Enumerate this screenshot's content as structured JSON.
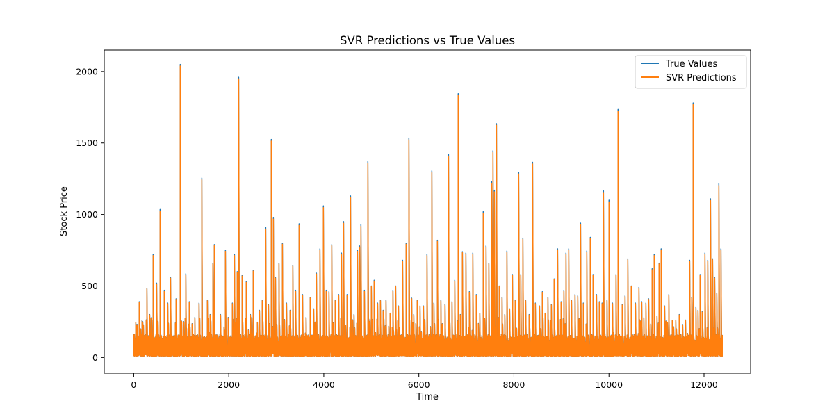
{
  "chart_data": {
    "type": "line",
    "title": "SVR Predictions vs True Values",
    "xlabel": "Time",
    "ylabel": "Stock Price",
    "xlim": [
      -620,
      12980
    ],
    "ylim": [
      -110,
      2150
    ],
    "xticks": [
      0,
      2000,
      4000,
      6000,
      8000,
      10000,
      12000
    ],
    "yticks": [
      0,
      500,
      1000,
      1500,
      2000
    ],
    "grid": false,
    "legend": "top-right",
    "n_points": 12400,
    "series": [
      {
        "name": "True Values",
        "color": "#1f77b4"
      },
      {
        "name": "SVR Predictions",
        "color": "#ff7f0e"
      }
    ],
    "spikes": [
      [
        60,
        230
      ],
      [
        130,
        390
      ],
      [
        200,
        250
      ],
      [
        280,
        485
      ],
      [
        340,
        300
      ],
      [
        420,
        720
      ],
      [
        490,
        520
      ],
      [
        560,
        1035
      ],
      [
        650,
        470
      ],
      [
        720,
        380
      ],
      [
        780,
        560
      ],
      [
        900,
        410
      ],
      [
        980,
        2050
      ],
      [
        1060,
        250
      ],
      [
        1110,
        585
      ],
      [
        1180,
        390
      ],
      [
        1300,
        280
      ],
      [
        1380,
        380
      ],
      [
        1440,
        1255
      ],
      [
        1550,
        400
      ],
      [
        1620,
        300
      ],
      [
        1680,
        660
      ],
      [
        1700,
        790
      ],
      [
        1830,
        300
      ],
      [
        1940,
        750
      ],
      [
        2000,
        280
      ],
      [
        2080,
        380
      ],
      [
        2120,
        720
      ],
      [
        2180,
        600
      ],
      [
        2220,
        1960
      ],
      [
        2290,
        575
      ],
      [
        2380,
        530
      ],
      [
        2460,
        300
      ],
      [
        2520,
        610
      ],
      [
        2650,
        330
      ],
      [
        2710,
        400
      ],
      [
        2790,
        910
      ],
      [
        2850,
        370
      ],
      [
        2900,
        1525
      ],
      [
        2940,
        980
      ],
      [
        2990,
        560
      ],
      [
        3060,
        660
      ],
      [
        3130,
        800
      ],
      [
        3220,
        380
      ],
      [
        3300,
        330
      ],
      [
        3350,
        645
      ],
      [
        3420,
        470
      ],
      [
        3480,
        935
      ],
      [
        3560,
        440
      ],
      [
        3640,
        280
      ],
      [
        3720,
        420
      ],
      [
        3790,
        340
      ],
      [
        3850,
        590
      ],
      [
        3920,
        760
      ],
      [
        4000,
        1060
      ],
      [
        4060,
        470
      ],
      [
        4120,
        460
      ],
      [
        4170,
        790
      ],
      [
        4250,
        400
      ],
      [
        4320,
        440
      ],
      [
        4380,
        730
      ],
      [
        4420,
        950
      ],
      [
        4500,
        440
      ],
      [
        4570,
        1130
      ],
      [
        4640,
        300
      ],
      [
        4720,
        750
      ],
      [
        4760,
        780
      ],
      [
        4790,
        930
      ],
      [
        4860,
        470
      ],
      [
        4940,
        1370
      ],
      [
        5000,
        500
      ],
      [
        5060,
        540
      ],
      [
        5140,
        380
      ],
      [
        5200,
        400
      ],
      [
        5260,
        330
      ],
      [
        5320,
        400
      ],
      [
        5400,
        310
      ],
      [
        5460,
        470
      ],
      [
        5520,
        500
      ],
      [
        5580,
        360
      ],
      [
        5660,
        680
      ],
      [
        5740,
        800
      ],
      [
        5790,
        1535
      ],
      [
        5850,
        415
      ],
      [
        5900,
        300
      ],
      [
        5970,
        400
      ],
      [
        6030,
        360
      ],
      [
        6100,
        360
      ],
      [
        6180,
        720
      ],
      [
        6280,
        1305
      ],
      [
        6320,
        380
      ],
      [
        6400,
        820
      ],
      [
        6470,
        400
      ],
      [
        6550,
        370
      ],
      [
        6630,
        1420
      ],
      [
        6700,
        390
      ],
      [
        6760,
        540
      ],
      [
        6830,
        1845
      ],
      [
        6880,
        300
      ],
      [
        6920,
        740
      ],
      [
        7000,
        730
      ],
      [
        7070,
        460
      ],
      [
        7140,
        730
      ],
      [
        7220,
        440
      ],
      [
        7290,
        310
      ],
      [
        7360,
        1020
      ],
      [
        7420,
        780
      ],
      [
        7480,
        660
      ],
      [
        7530,
        1230
      ],
      [
        7560,
        1445
      ],
      [
        7600,
        1170
      ],
      [
        7640,
        1635
      ],
      [
        7700,
        500
      ],
      [
        7760,
        420
      ],
      [
        7810,
        300
      ],
      [
        7860,
        745
      ],
      [
        7920,
        340
      ],
      [
        7980,
        580
      ],
      [
        8040,
        400
      ],
      [
        8100,
        1295
      ],
      [
        8150,
        580
      ],
      [
        8200,
        835
      ],
      [
        8260,
        400
      ],
      [
        8320,
        300
      ],
      [
        8400,
        1365
      ],
      [
        8460,
        380
      ],
      [
        8540,
        360
      ],
      [
        8600,
        460
      ],
      [
        8660,
        310
      ],
      [
        8720,
        420
      ],
      [
        8800,
        370
      ],
      [
        8860,
        550
      ],
      [
        8920,
        760
      ],
      [
        9000,
        390
      ],
      [
        9060,
        470
      ],
      [
        9100,
        730
      ],
      [
        9160,
        760
      ],
      [
        9220,
        400
      ],
      [
        9290,
        440
      ],
      [
        9350,
        430
      ],
      [
        9410,
        940
      ],
      [
        9470,
        380
      ],
      [
        9540,
        745
      ],
      [
        9610,
        840
      ],
      [
        9670,
        580
      ],
      [
        9740,
        440
      ],
      [
        9800,
        390
      ],
      [
        9860,
        380
      ],
      [
        9890,
        1165
      ],
      [
        9960,
        400
      ],
      [
        10010,
        1100
      ],
      [
        10080,
        380
      ],
      [
        10150,
        580
      ],
      [
        10200,
        1735
      ],
      [
        10280,
        370
      ],
      [
        10340,
        430
      ],
      [
        10400,
        690
      ],
      [
        10480,
        500
      ],
      [
        10560,
        380
      ],
      [
        10640,
        490
      ],
      [
        10700,
        390
      ],
      [
        10780,
        380
      ],
      [
        10840,
        410
      ],
      [
        10910,
        620
      ],
      [
        10960,
        720
      ],
      [
        11020,
        290
      ],
      [
        11060,
        660
      ],
      [
        11110,
        760
      ],
      [
        11180,
        360
      ],
      [
        11260,
        440
      ],
      [
        11340,
        260
      ],
      [
        11420,
        200
      ],
      [
        11480,
        300
      ],
      [
        11560,
        230
      ],
      [
        11620,
        250
      ],
      [
        11700,
        680
      ],
      [
        11750,
        420
      ],
      [
        11780,
        1780
      ],
      [
        11830,
        350
      ],
      [
        11880,
        330
      ],
      [
        11920,
        580
      ],
      [
        11970,
        320
      ],
      [
        12020,
        730
      ],
      [
        12080,
        680
      ],
      [
        12140,
        1110
      ],
      [
        12180,
        690
      ],
      [
        12230,
        560
      ],
      [
        12280,
        450
      ],
      [
        12320,
        1215
      ],
      [
        12360,
        760
      ]
    ]
  }
}
